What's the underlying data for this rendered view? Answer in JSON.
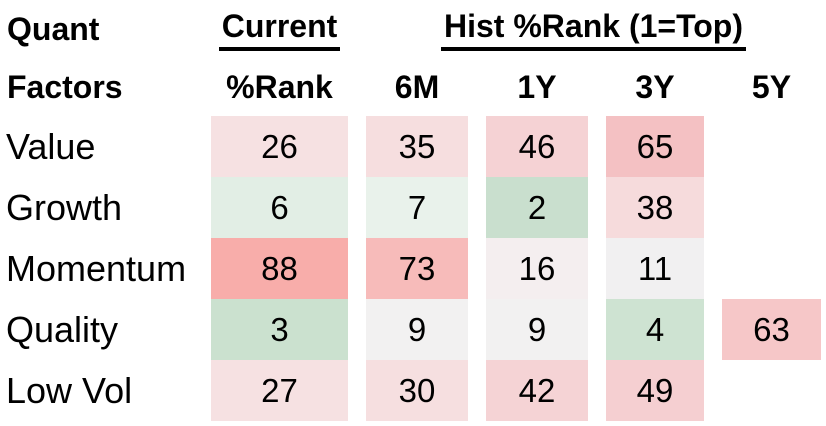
{
  "table": {
    "corner": {
      "line1": "Quant",
      "line2": "Factors"
    },
    "group_headers": {
      "current": "Current",
      "hist": "Hist %Rank (1=Top)"
    },
    "columns": [
      "%Rank",
      "6M",
      "1Y",
      "3Y",
      "5Y"
    ],
    "rows": [
      {
        "factor": "Value",
        "cells": [
          {
            "value": "26",
            "color": "#F6E1E2"
          },
          {
            "value": "35",
            "color": "#F6DEDF"
          },
          {
            "value": "46",
            "color": "#F5D2D4"
          },
          {
            "value": "65",
            "color": "#F4C1C3"
          },
          {
            "value": "",
            "color": ""
          }
        ]
      },
      {
        "factor": "Growth",
        "cells": [
          {
            "value": "6",
            "color": "#E2EEE5"
          },
          {
            "value": "7",
            "color": "#E9F2EB"
          },
          {
            "value": "2",
            "color": "#C9DFCE"
          },
          {
            "value": "38",
            "color": "#F6DBDC"
          },
          {
            "value": "",
            "color": ""
          }
        ]
      },
      {
        "factor": "Momentum",
        "cells": [
          {
            "value": "88",
            "color": "#F8ADAA"
          },
          {
            "value": "73",
            "color": "#F7BBBA"
          },
          {
            "value": "16",
            "color": "#F4EEEF"
          },
          {
            "value": "11",
            "color": "#F1F0F1"
          },
          {
            "value": "",
            "color": ""
          }
        ]
      },
      {
        "factor": "Quality",
        "cells": [
          {
            "value": "3",
            "color": "#CBE1CF"
          },
          {
            "value": "9",
            "color": "#F2F1F1"
          },
          {
            "value": "9",
            "color": "#F2F1F1"
          },
          {
            "value": "4",
            "color": "#CEE3D2"
          },
          {
            "value": "63",
            "color": "#F6C7C8"
          }
        ]
      },
      {
        "factor": "Low Vol",
        "cells": [
          {
            "value": "27",
            "color": "#F6E1E2"
          },
          {
            "value": "30",
            "color": "#F6DFE0"
          },
          {
            "value": "42",
            "color": "#F5D3D5"
          },
          {
            "value": "49",
            "color": "#F5CFD1"
          },
          {
            "value": "",
            "color": ""
          }
        ]
      }
    ]
  },
  "colors": {
    "good_rank_green": "#C9DFCE",
    "neutral_white": "#F1F0F1",
    "bad_rank_red": "#F8ADAA",
    "text": "#000000",
    "background": "#FFFFFF"
  },
  "chart_data": {
    "type": "heatmap",
    "title": "Quant Factors %Rank (1=Top)",
    "row_labels": [
      "Value",
      "Growth",
      "Momentum",
      "Quality",
      "Low Vol"
    ],
    "col_labels": [
      "Current %Rank",
      "6M",
      "1Y",
      "3Y",
      "5Y"
    ],
    "values": [
      [
        26,
        35,
        46,
        65,
        null
      ],
      [
        6,
        7,
        2,
        38,
        null
      ],
      [
        88,
        73,
        16,
        11,
        null
      ],
      [
        3,
        9,
        9,
        4,
        63
      ],
      [
        27,
        30,
        42,
        49,
        null
      ]
    ],
    "value_range": [
      1,
      100
    ],
    "color_scale": "low rank 1 = green, mid = white, high rank 100 = red",
    "legend": "none",
    "grid": "off"
  }
}
